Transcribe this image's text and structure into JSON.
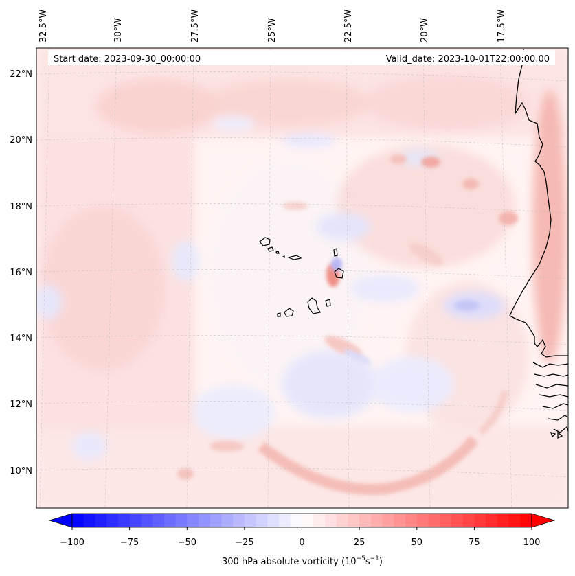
{
  "start_date": "Start date: 2023-09-30_00:00:00",
  "valid_date": "Valid_date: 2023-10-01T22:00:00.00",
  "colorbar": {
    "label_main": "300 hPa absolute vorticity (10",
    "label_exp1": "−5",
    "label_mid": "s",
    "label_exp2": "−1",
    "label_end": ")",
    "ticks": [
      "−100",
      "−75",
      "−50",
      "−25",
      "0",
      "25",
      "50",
      "75",
      "100"
    ],
    "min": -100,
    "max": 100,
    "colors": {
      "low": "#0000ff",
      "mid": "#ffffff",
      "high": "#ff0000"
    }
  },
  "lon_labels": [
    "32.5°W",
    "30°W",
    "27.5°W",
    "25°W",
    "22.5°W",
    "20°W",
    "17.5°W"
  ],
  "lat_labels": [
    "22°N",
    "20°N",
    "18°N",
    "16°N",
    "14°N",
    "12°N",
    "10°N"
  ],
  "chart_data": {
    "type": "heatmap",
    "variable": "300 hPa absolute vorticity",
    "units": "10^-5 s^-1",
    "color_range": [
      -100,
      100
    ],
    "colormap": "bwr",
    "lon_range": [
      -33,
      -16
    ],
    "lat_range": [
      9,
      23
    ],
    "lon_ticks": [
      -32.5,
      -30,
      -27.5,
      -25,
      -22.5,
      -20,
      -17.5
    ],
    "lat_ticks": [
      22,
      20,
      18,
      16,
      14,
      12,
      10
    ],
    "grid": true,
    "features": [
      "Cape Verde islands",
      "West African coastline"
    ]
  }
}
